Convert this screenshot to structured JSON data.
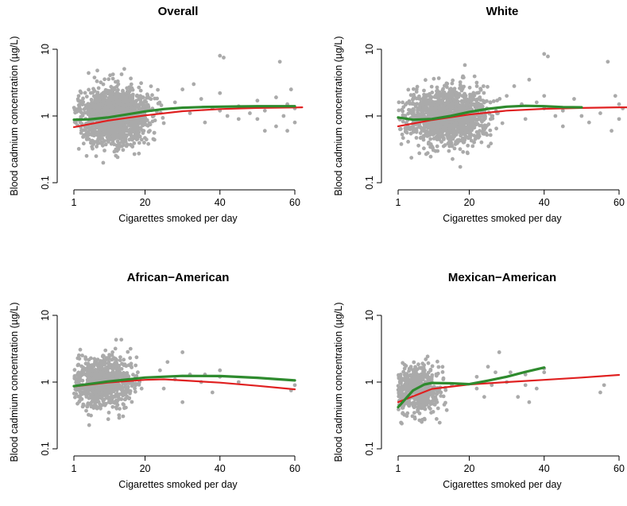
{
  "chart_data": [
    {
      "type": "scatter",
      "title": "Overall",
      "xlabel": "Cigarettes smoked per day",
      "ylabel": "Blood cadmium concentration (µg/L)",
      "x_ticks": [
        1,
        20,
        40,
        60
      ],
      "y_ticks": [
        0.1,
        1,
        10
      ],
      "y_tick_labels": [
        "0.1",
        "1",
        "10"
      ],
      "xlim": [
        1,
        60
      ],
      "ylim": [
        0.1,
        10
      ],
      "y_scale": "log",
      "cloud": {
        "x_min": 1,
        "x_max": 25,
        "x_mode": 12,
        "y_center": 1.0,
        "y_spread": 0.32,
        "count": 1500,
        "color": "#aaaaaa"
      },
      "extra_points": [
        [
          28,
          1.6
        ],
        [
          30,
          2.5
        ],
        [
          32,
          1.1
        ],
        [
          33,
          3.0
        ],
        [
          35,
          1.8
        ],
        [
          36,
          0.8
        ],
        [
          38,
          1.3
        ],
        [
          40,
          1.2
        ],
        [
          40,
          2.2
        ],
        [
          40,
          8.0
        ],
        [
          41,
          7.5
        ],
        [
          42,
          1.0
        ],
        [
          45,
          1.4
        ],
        [
          45,
          0.9
        ],
        [
          48,
          1.1
        ],
        [
          50,
          1.7
        ],
        [
          50,
          0.9
        ],
        [
          52,
          1.2
        ],
        [
          55,
          0.7
        ],
        [
          56,
          6.5
        ],
        [
          57,
          1.0
        ],
        [
          58,
          0.6
        ],
        [
          58,
          1.5
        ],
        [
          59,
          2.5
        ],
        [
          60,
          1.3
        ],
        [
          60,
          0.8
        ],
        [
          55,
          1.9
        ],
        [
          52,
          0.6
        ]
      ],
      "series": [
        {
          "name": "",
          "color": "#e02020",
          "x": [
            1,
            10,
            20,
            30,
            40,
            50,
            60,
            62
          ],
          "y": [
            0.68,
            0.85,
            1.02,
            1.18,
            1.27,
            1.32,
            1.34,
            1.35
          ]
        },
        {
          "name": "",
          "color": "#2e8b2e",
          "x": [
            1,
            5,
            10,
            15,
            20,
            25,
            30,
            35,
            40,
            45,
            50,
            55,
            60
          ],
          "y": [
            0.88,
            0.89,
            0.95,
            1.05,
            1.17,
            1.27,
            1.33,
            1.36,
            1.38,
            1.39,
            1.4,
            1.4,
            1.4
          ]
        }
      ]
    },
    {
      "type": "scatter",
      "title": "White",
      "xlabel": "Cigarettes smoked per day",
      "ylabel": "Blood cadmium concentration (µg/L)",
      "x_ticks": [
        1,
        20,
        40,
        60
      ],
      "y_ticks": [
        0.1,
        1,
        10
      ],
      "y_tick_labels": [
        "0.1",
        "1",
        "10"
      ],
      "xlim": [
        1,
        60
      ],
      "ylim": [
        0.1,
        10
      ],
      "y_scale": "log",
      "cloud": {
        "x_min": 1,
        "x_max": 30,
        "x_mode": 14,
        "y_center": 1.0,
        "y_spread": 0.32,
        "count": 1400,
        "color": "#aaaaaa"
      },
      "extra_points": [
        [
          30,
          2.0
        ],
        [
          32,
          2.8
        ],
        [
          34,
          1.5
        ],
        [
          35,
          0.9
        ],
        [
          36,
          3.5
        ],
        [
          38,
          1.6
        ],
        [
          40,
          1.3
        ],
        [
          40,
          2.0
        ],
        [
          40,
          8.5
        ],
        [
          41,
          7.8
        ],
        [
          43,
          1.0
        ],
        [
          45,
          1.2
        ],
        [
          45,
          0.7
        ],
        [
          48,
          1.8
        ],
        [
          50,
          1.0
        ],
        [
          52,
          0.8
        ],
        [
          55,
          1.1
        ],
        [
          57,
          6.5
        ],
        [
          58,
          0.6
        ],
        [
          59,
          2.0
        ],
        [
          60,
          1.5
        ],
        [
          60,
          0.9
        ],
        [
          61,
          1.3
        ]
      ],
      "series": [
        {
          "name": "",
          "color": "#e02020",
          "x": [
            1,
            10,
            20,
            30,
            40,
            50,
            60,
            62
          ],
          "y": [
            0.7,
            0.87,
            1.05,
            1.2,
            1.28,
            1.32,
            1.35,
            1.35
          ]
        },
        {
          "name": "",
          "color": "#2e8b2e",
          "x": [
            1,
            5,
            10,
            15,
            20,
            25,
            30,
            35,
            40,
            45,
            50
          ],
          "y": [
            0.95,
            0.88,
            0.9,
            1.0,
            1.15,
            1.28,
            1.38,
            1.42,
            1.4,
            1.36,
            1.35
          ]
        }
      ]
    },
    {
      "type": "scatter",
      "title": "African−American",
      "xlabel": "Cigarettes smoked per day",
      "ylabel": "Blood cadmium concentration (µg/L)",
      "x_ticks": [
        1,
        20,
        40,
        60
      ],
      "y_ticks": [
        0.1,
        1,
        10
      ],
      "y_tick_labels": [
        "0.1",
        "1",
        "10"
      ],
      "xlim": [
        1,
        60
      ],
      "ylim": [
        0.1,
        10
      ],
      "y_scale": "log",
      "cloud": {
        "x_min": 1,
        "x_max": 22,
        "x_mode": 9,
        "y_center": 1.0,
        "y_spread": 0.3,
        "count": 800,
        "color": "#aaaaaa"
      },
      "extra_points": [
        [
          24,
          1.5
        ],
        [
          25,
          0.8
        ],
        [
          26,
          2.0
        ],
        [
          28,
          1.1
        ],
        [
          30,
          2.8
        ],
        [
          30,
          0.5
        ],
        [
          32,
          1.3
        ],
        [
          35,
          1.0
        ],
        [
          36,
          1.3
        ],
        [
          38,
          0.7
        ],
        [
          40,
          1.5
        ],
        [
          40,
          1.2
        ],
        [
          45,
          1.0
        ],
        [
          60,
          0.9
        ],
        [
          59,
          0.75
        ]
      ],
      "series": [
        {
          "name": "",
          "color": "#e02020",
          "x": [
            1,
            10,
            20,
            25,
            30,
            40,
            50,
            60
          ],
          "y": [
            0.86,
            0.98,
            1.08,
            1.1,
            1.06,
            0.98,
            0.88,
            0.78
          ]
        },
        {
          "name": "",
          "color": "#2e8b2e",
          "x": [
            1,
            10,
            20,
            30,
            40,
            50,
            60
          ],
          "y": [
            0.87,
            1.02,
            1.17,
            1.24,
            1.23,
            1.16,
            1.06
          ]
        }
      ]
    },
    {
      "type": "scatter",
      "title": "Mexican−American",
      "xlabel": "Cigarettes smoked per day",
      "ylabel": "Blood cadmium concentration (µg/L)",
      "x_ticks": [
        1,
        20,
        40,
        60
      ],
      "y_ticks": [
        0.1,
        1,
        10
      ],
      "y_tick_labels": [
        "0.1",
        "1",
        "10"
      ],
      "xlim": [
        1,
        60
      ],
      "ylim": [
        0.1,
        10
      ],
      "y_scale": "log",
      "cloud": {
        "x_min": 1,
        "x_max": 20,
        "x_mode": 6,
        "y_center": 0.75,
        "y_spread": 0.28,
        "count": 500,
        "color": "#aaaaaa"
      },
      "extra_points": [
        [
          22,
          1.2
        ],
        [
          22,
          0.8
        ],
        [
          24,
          0.6
        ],
        [
          25,
          1.7
        ],
        [
          26,
          0.9
        ],
        [
          27,
          1.4
        ],
        [
          28,
          2.8
        ],
        [
          30,
          1.0
        ],
        [
          31,
          1.4
        ],
        [
          33,
          0.6
        ],
        [
          35,
          1.3
        ],
        [
          35,
          0.9
        ],
        [
          36,
          0.5
        ],
        [
          38,
          0.8
        ],
        [
          40,
          1.4
        ],
        [
          40,
          1.6
        ],
        [
          55,
          0.7
        ],
        [
          56,
          0.9
        ]
      ],
      "series": [
        {
          "name": "",
          "color": "#e02020",
          "x": [
            1,
            10,
            20,
            30,
            40,
            50,
            60
          ],
          "y": [
            0.5,
            0.79,
            0.92,
            1.0,
            1.08,
            1.17,
            1.28
          ]
        },
        {
          "name": "",
          "color": "#2e8b2e",
          "x": [
            1,
            5,
            8,
            10,
            15,
            20,
            25,
            30,
            35,
            40
          ],
          "y": [
            0.42,
            0.75,
            0.92,
            0.97,
            0.96,
            0.93,
            1.05,
            1.2,
            1.42,
            1.65
          ]
        }
      ]
    }
  ]
}
